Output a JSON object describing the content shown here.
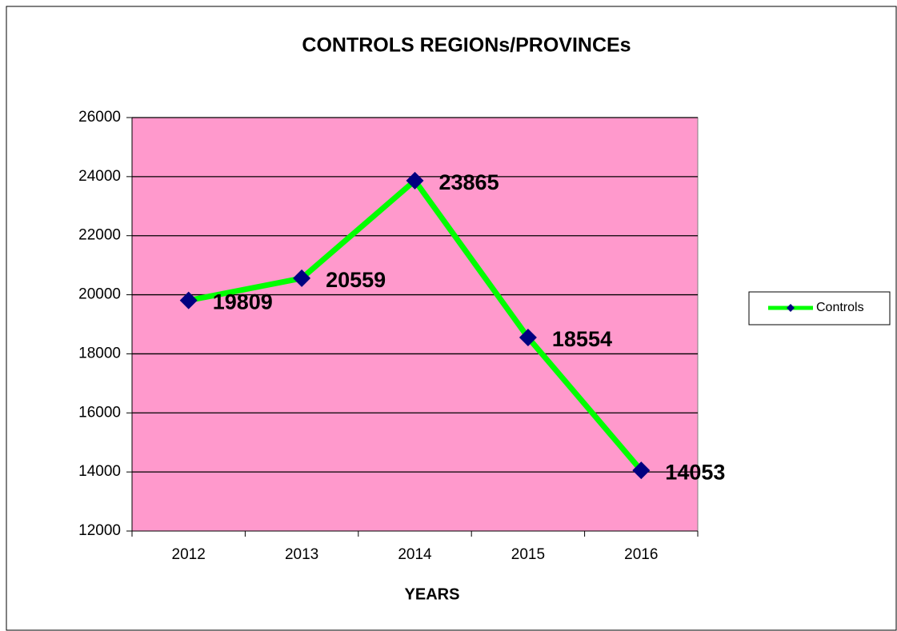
{
  "chart_data": {
    "type": "line",
    "title": "CONTROLS REGIONs/PROVINCEs",
    "x_label": "YEARS",
    "categories": [
      "2012",
      "2013",
      "2014",
      "2015",
      "2016"
    ],
    "series": [
      {
        "name": "Controls",
        "color": "#00ff00",
        "marker_color": "#000080",
        "values": [
          19809,
          20559,
          23865,
          18554,
          14053
        ]
      }
    ],
    "ylim": [
      12000,
      26000
    ],
    "yticks": [
      12000,
      14000,
      16000,
      18000,
      20000,
      22000,
      24000,
      26000
    ],
    "grid": true,
    "plot_background": "#ff99cc",
    "legend": "right"
  }
}
